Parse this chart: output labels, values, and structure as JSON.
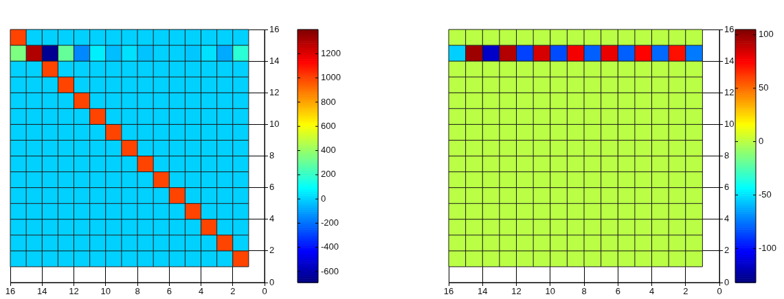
{
  "chart_data": [
    {
      "type": "heatmap",
      "x": [
        15.5,
        14.5,
        13.5,
        12.5,
        11.5,
        10.5,
        9.5,
        8.5,
        7.5,
        6.5,
        5.5,
        4.5,
        3.5,
        2.5,
        1.5
      ],
      "y": [
        15.5,
        14.5,
        13.5,
        12.5,
        11.5,
        10.5,
        9.5,
        8.5,
        7.5,
        6.5,
        5.5,
        4.5,
        3.5,
        2.5,
        1.5
      ],
      "cells": [
        [
          1000,
          0,
          0,
          0,
          0,
          0,
          0,
          0,
          0,
          0,
          0,
          0,
          0,
          0,
          0
        ],
        [
          350,
          1300,
          -650,
          300,
          -150,
          60,
          -40,
          30,
          -30,
          0,
          0,
          -20,
          30,
          -80,
          180
        ],
        [
          0,
          0,
          1000,
          0,
          0,
          0,
          0,
          0,
          0,
          0,
          0,
          0,
          0,
          0,
          0
        ],
        [
          0,
          0,
          0,
          1000,
          0,
          0,
          0,
          0,
          0,
          0,
          0,
          0,
          0,
          0,
          0
        ],
        [
          0,
          0,
          0,
          0,
          1000,
          0,
          0,
          0,
          0,
          0,
          0,
          0,
          0,
          0,
          0
        ],
        [
          0,
          0,
          0,
          0,
          0,
          1000,
          0,
          0,
          0,
          0,
          0,
          0,
          0,
          0,
          0
        ],
        [
          0,
          0,
          0,
          0,
          0,
          0,
          1000,
          0,
          0,
          0,
          0,
          0,
          0,
          0,
          0
        ],
        [
          0,
          0,
          0,
          0,
          0,
          0,
          0,
          1000,
          0,
          0,
          0,
          0,
          0,
          0,
          0
        ],
        [
          0,
          0,
          0,
          0,
          0,
          0,
          0,
          0,
          1000,
          0,
          0,
          0,
          0,
          0,
          0
        ],
        [
          0,
          0,
          0,
          0,
          0,
          0,
          0,
          0,
          0,
          1000,
          0,
          0,
          0,
          0,
          0
        ],
        [
          0,
          0,
          0,
          0,
          0,
          0,
          0,
          0,
          0,
          0,
          1000,
          0,
          0,
          0,
          0
        ],
        [
          0,
          0,
          0,
          0,
          0,
          0,
          0,
          0,
          0,
          0,
          0,
          1000,
          0,
          0,
          0
        ],
        [
          0,
          0,
          0,
          0,
          0,
          0,
          0,
          0,
          0,
          0,
          0,
          0,
          1000,
          0,
          0
        ],
        [
          0,
          0,
          0,
          0,
          0,
          0,
          0,
          0,
          0,
          0,
          0,
          0,
          0,
          1000,
          0
        ],
        [
          0,
          0,
          0,
          0,
          0,
          0,
          0,
          0,
          0,
          0,
          0,
          0,
          0,
          0,
          1000
        ]
      ],
      "clim": [
        -690,
        1400
      ],
      "cticks": [
        -600,
        -400,
        -200,
        0,
        200,
        400,
        600,
        800,
        1000,
        1200
      ],
      "xlim": [
        16,
        0
      ],
      "xticks": [
        16,
        14,
        12,
        10,
        8,
        6,
        4,
        2,
        0
      ],
      "ylim": [
        0,
        16
      ],
      "yticks": [
        0,
        2,
        4,
        6,
        8,
        10,
        12,
        14,
        16
      ],
      "grid": true
    },
    {
      "type": "heatmap",
      "x": [
        15.5,
        14.5,
        13.5,
        12.5,
        11.5,
        10.5,
        9.5,
        8.5,
        7.5,
        6.5,
        5.5,
        4.5,
        3.5,
        2.5,
        1.5
      ],
      "y": [
        15.5,
        14.5,
        13.5,
        12.5,
        11.5,
        10.5,
        9.5,
        8.5,
        7.5,
        6.5,
        5.5,
        4.5,
        3.5,
        2.5,
        1.5
      ],
      "cells": [
        [
          0,
          0,
          0,
          0,
          0,
          0,
          0,
          0,
          0,
          0,
          0,
          0,
          0,
          0,
          0
        ],
        [
          -54,
          98,
          -115,
          93,
          -87,
          85,
          -85,
          78,
          -80,
          80,
          -80,
          75,
          -78,
          72,
          -74
        ],
        [
          0,
          0,
          0,
          0,
          0,
          0,
          0,
          0,
          0,
          0,
          0,
          0,
          0,
          0,
          0
        ],
        [
          0,
          0,
          0,
          0,
          0,
          0,
          0,
          0,
          0,
          0,
          0,
          0,
          0,
          0,
          0
        ],
        [
          0,
          0,
          0,
          0,
          0,
          0,
          0,
          0,
          0,
          0,
          0,
          0,
          0,
          0,
          0
        ],
        [
          0,
          0,
          0,
          0,
          0,
          0,
          0,
          0,
          0,
          0,
          0,
          0,
          0,
          0,
          0
        ],
        [
          0,
          0,
          0,
          0,
          0,
          0,
          0,
          0,
          0,
          0,
          0,
          0,
          0,
          0,
          0
        ],
        [
          0,
          0,
          0,
          0,
          0,
          0,
          0,
          0,
          0,
          0,
          0,
          0,
          0,
          0,
          0
        ],
        [
          0,
          0,
          0,
          0,
          0,
          0,
          0,
          0,
          0,
          0,
          0,
          0,
          0,
          0,
          0
        ],
        [
          0,
          0,
          0,
          0,
          0,
          0,
          0,
          0,
          0,
          0,
          0,
          0,
          0,
          0,
          0
        ],
        [
          0,
          0,
          0,
          0,
          0,
          0,
          0,
          0,
          0,
          0,
          0,
          0,
          0,
          0,
          0
        ],
        [
          0,
          0,
          0,
          0,
          0,
          0,
          0,
          0,
          0,
          0,
          0,
          0,
          0,
          0,
          0
        ],
        [
          0,
          0,
          0,
          0,
          0,
          0,
          0,
          0,
          0,
          0,
          0,
          0,
          0,
          0,
          0
        ],
        [
          0,
          0,
          0,
          0,
          0,
          0,
          0,
          0,
          0,
          0,
          0,
          0,
          0,
          0,
          0
        ],
        [
          0,
          0,
          0,
          0,
          0,
          0,
          0,
          0,
          0,
          0,
          0,
          0,
          0,
          0,
          0
        ]
      ],
      "clim": [
        -132,
        105
      ],
      "cticks": [
        -100,
        -50,
        0,
        50,
        100
      ],
      "xlim": [
        16,
        0
      ],
      "xticks": [
        16,
        14,
        12,
        10,
        8,
        6,
        4,
        2,
        0
      ],
      "ylim": [
        0,
        16
      ],
      "yticks": [
        0,
        2,
        4,
        6,
        8,
        10,
        12,
        14,
        16
      ],
      "grid": true
    }
  ]
}
